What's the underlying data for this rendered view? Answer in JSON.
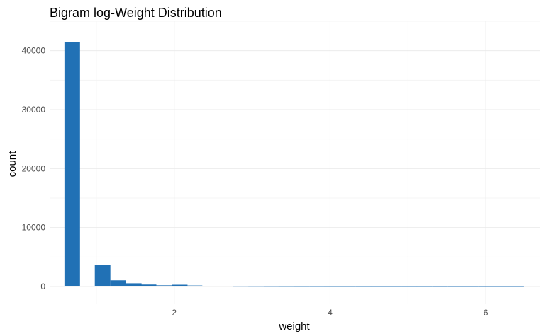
{
  "chart_data": {
    "type": "bar",
    "title": "Bigram log-Weight Distribution",
    "xlabel": "weight",
    "ylabel": "count",
    "bar_color": "#2171b5",
    "grid": true,
    "bin_width": 0.2,
    "bins": [
      {
        "x": 0.69,
        "count": 41500
      },
      {
        "x": 0.89,
        "count": 0
      },
      {
        "x": 1.08,
        "count": 3700
      },
      {
        "x": 1.28,
        "count": 1050
      },
      {
        "x": 1.48,
        "count": 550
      },
      {
        "x": 1.67,
        "count": 330
      },
      {
        "x": 1.87,
        "count": 200
      },
      {
        "x": 2.07,
        "count": 300
      },
      {
        "x": 2.26,
        "count": 170
      },
      {
        "x": 2.46,
        "count": 90
      },
      {
        "x": 2.66,
        "count": 60
      },
      {
        "x": 2.85,
        "count": 40
      },
      {
        "x": 3.05,
        "count": 30
      },
      {
        "x": 3.25,
        "count": 20
      },
      {
        "x": 3.44,
        "count": 15
      },
      {
        "x": 3.64,
        "count": 10
      },
      {
        "x": 3.84,
        "count": 8
      },
      {
        "x": 4.03,
        "count": 6
      },
      {
        "x": 4.23,
        "count": 5
      },
      {
        "x": 4.43,
        "count": 4
      },
      {
        "x": 4.62,
        "count": 3
      },
      {
        "x": 4.82,
        "count": 3
      },
      {
        "x": 5.02,
        "count": 2
      },
      {
        "x": 5.21,
        "count": 2
      },
      {
        "x": 5.41,
        "count": 1
      },
      {
        "x": 5.61,
        "count": 1
      },
      {
        "x": 5.8,
        "count": 1
      },
      {
        "x": 6.0,
        "count": 1
      },
      {
        "x": 6.2,
        "count": 1
      },
      {
        "x": 6.39,
        "count": 1
      }
    ],
    "xlim": [
      0.4,
      6.7
    ],
    "ylim": [
      -3000,
      45000
    ],
    "x_ticks": [
      2,
      4,
      6
    ],
    "y_ticks": [
      0,
      10000,
      20000,
      30000,
      40000
    ]
  }
}
